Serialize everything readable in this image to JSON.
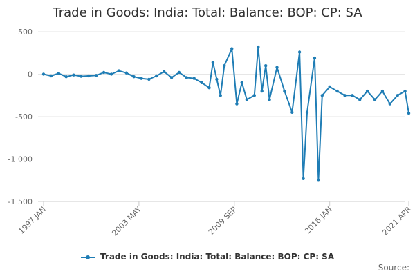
{
  "chart_data": {
    "type": "line",
    "title": "Trade in Goods: India: Total: Balance: BOP: CP: SA",
    "xlabel": "",
    "ylabel": "",
    "x_ticks": [
      "1997 JAN",
      "2003 MAY",
      "2009 SEP",
      "2016 JAN",
      "2021 APR"
    ],
    "y_ticks": [
      "500",
      "0",
      "-500",
      "-1 000",
      "-1 500"
    ],
    "ylim": [
      -1500,
      500
    ],
    "grid": true,
    "legend_position": "bottom",
    "series": [
      {
        "name": "Trade in Goods: India: Total: Balance: BOP: CP: SA",
        "color": "#1f7db5",
        "points": [
          [
            "1997-01",
            0
          ],
          [
            "1997-07",
            -20
          ],
          [
            "1998-01",
            10
          ],
          [
            "1998-07",
            -30
          ],
          [
            "1999-01",
            -10
          ],
          [
            "1999-07",
            -25
          ],
          [
            "2000-01",
            -20
          ],
          [
            "2000-07",
            -15
          ],
          [
            "2001-01",
            20
          ],
          [
            "2001-07",
            0
          ],
          [
            "2002-01",
            40
          ],
          [
            "2002-07",
            15
          ],
          [
            "2003-01",
            -30
          ],
          [
            "2003-07",
            -50
          ],
          [
            "2004-01",
            -60
          ],
          [
            "2004-07",
            -20
          ],
          [
            "2005-01",
            30
          ],
          [
            "2005-07",
            -40
          ],
          [
            "2006-01",
            20
          ],
          [
            "2006-07",
            -40
          ],
          [
            "2007-01",
            -50
          ],
          [
            "2007-07",
            -100
          ],
          [
            "2008-01",
            -160
          ],
          [
            "2008-04",
            140
          ],
          [
            "2008-07",
            -60
          ],
          [
            "2008-10",
            -250
          ],
          [
            "2009-01",
            100
          ],
          [
            "2009-07",
            300
          ],
          [
            "2009-11",
            -350
          ],
          [
            "2010-03",
            -100
          ],
          [
            "2010-07",
            -300
          ],
          [
            "2011-01",
            -250
          ],
          [
            "2011-04",
            320
          ],
          [
            "2011-07",
            -200
          ],
          [
            "2011-10",
            100
          ],
          [
            "2012-01",
            -300
          ],
          [
            "2012-07",
            80
          ],
          [
            "2013-01",
            -200
          ],
          [
            "2013-07",
            -450
          ],
          [
            "2014-01",
            260
          ],
          [
            "2014-04",
            -1230
          ],
          [
            "2014-07",
            -450
          ],
          [
            "2015-01",
            190
          ],
          [
            "2015-04",
            -1250
          ],
          [
            "2015-07",
            -250
          ],
          [
            "2016-01",
            -150
          ],
          [
            "2016-07",
            -200
          ],
          [
            "2017-01",
            -250
          ],
          [
            "2017-07",
            -250
          ],
          [
            "2018-01",
            -300
          ],
          [
            "2018-07",
            -200
          ],
          [
            "2019-01",
            -300
          ],
          [
            "2019-07",
            -200
          ],
          [
            "2020-01",
            -350
          ],
          [
            "2020-07",
            -250
          ],
          [
            "2021-01",
            -200
          ],
          [
            "2021-04",
            -460
          ]
        ]
      }
    ],
    "source_label": "Source:"
  }
}
